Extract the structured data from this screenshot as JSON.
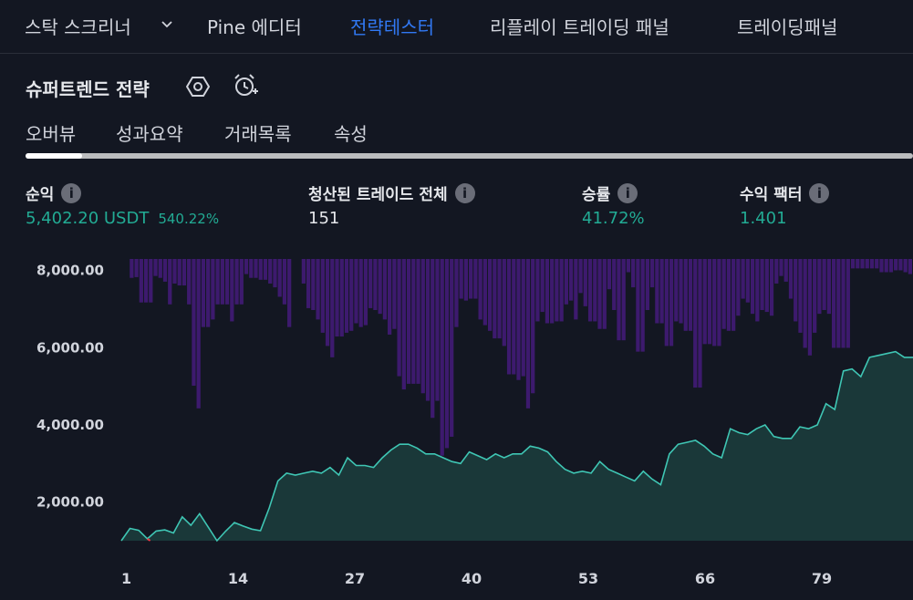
{
  "topbar": {
    "tabs": [
      {
        "label": "스탁 스크리너"
      },
      {
        "label": "Pine 에디터"
      },
      {
        "label": "전략테스터"
      },
      {
        "label": "리플레이 트레이딩 패널"
      },
      {
        "label": "트레이딩패널"
      }
    ],
    "active_color": "#3179f5"
  },
  "strategy": {
    "title": "슈퍼트렌드 전략",
    "icons": [
      "settings-hexagon-icon",
      "alarm-add-icon"
    ]
  },
  "subtabs": [
    "오버뷰",
    "성과요약",
    "거래목록",
    "속성"
  ],
  "stats": {
    "net_profit": {
      "label": "순익",
      "value": "5,402.20 USDT",
      "percent": "540.22%"
    },
    "total_closed": {
      "label": "청산된 트레이드 전체",
      "value": "151"
    },
    "win_rate": {
      "label": "승률",
      "value": "41.72%"
    },
    "profit_factor": {
      "label": "수익 팩터",
      "value": "1.401"
    }
  },
  "info_icon_glyph": "i",
  "chart_data": {
    "type": "area",
    "y_ticks": [
      "8,000.00",
      "6,000.00",
      "4,000.00",
      "2,000.00"
    ],
    "y_tick_values": [
      8000,
      6000,
      4000,
      2000
    ],
    "x_ticks": [
      "1",
      "14",
      "27",
      "40",
      "53",
      "66",
      "79"
    ],
    "x_tick_values": [
      1,
      14,
      27,
      40,
      53,
      66,
      79
    ],
    "xlim": [
      1,
      88
    ],
    "ylim": [
      1000,
      8300
    ],
    "equity_baseline": 1000,
    "colors": {
      "equity_line": "#3fc6b4",
      "equity_fill": "#1a3a3b",
      "drawdown": "#3d1a6e",
      "negative": "#f23645"
    },
    "equity": [
      1000,
      1320,
      1270,
      1050,
      1250,
      1280,
      1200,
      1620,
      1400,
      1700,
      1350,
      1000,
      1250,
      1470,
      1380,
      1300,
      1260,
      1850,
      2550,
      2750,
      2700,
      2750,
      2800,
      2750,
      2900,
      2700,
      3150,
      2950,
      2950,
      2900,
      3150,
      3350,
      3500,
      3500,
      3400,
      3250,
      3250,
      3150,
      3050,
      3000,
      3300,
      3200,
      3100,
      3250,
      3150,
      3250,
      3250,
      3450,
      3400,
      3300,
      3050,
      2850,
      2750,
      2800,
      2750,
      3050,
      2850,
      2750,
      2650,
      2550,
      2800,
      2600,
      2450,
      3250,
      3500,
      3550,
      3600,
      3450,
      3250,
      3150,
      3900,
      3800,
      3750,
      3900,
      4000,
      3700,
      3650,
      3650,
      3950,
      3900,
      4000,
      4550,
      4400,
      5400,
      5450,
      5250,
      5750,
      5800,
      5850,
      5900,
      5750,
      5750
    ],
    "drawdown": [
      0,
      500,
      480,
      1150,
      1150,
      1150,
      450,
      500,
      600,
      1200,
      650,
      700,
      700,
      1200,
      3350,
      3950,
      1800,
      1800,
      1600,
      1200,
      1200,
      1200,
      1650,
      1200,
      1200,
      400,
      500,
      500,
      550,
      550,
      650,
      750,
      1000,
      1200,
      1800,
      0,
      0,
      650,
      1300,
      1350,
      1600,
      1950,
      2300,
      2600,
      2050,
      2050,
      1950,
      1900,
      1700,
      1800,
      1750,
      1300,
      1350,
      1450,
      1600,
      2000,
      1850,
      3100,
      3450,
      3300,
      3300,
      3300,
      3550,
      3750,
      4200,
      3750,
      5200,
      5000,
      4700,
      1800,
      1050,
      1100,
      1050,
      1050,
      1600,
      1750,
      1900,
      2100,
      2100,
      2300,
      3050,
      3050,
      3200,
      3100,
      3950,
      3550,
      1650,
      1400,
      1700,
      1700,
      1650,
      1650,
      1200,
      1100,
      1600,
      900,
      1250,
      1650,
      1650,
      1850,
      1850,
      800,
      1350,
      2150,
      2150,
      350,
      750,
      2450,
      2450,
      1350,
      750,
      1700,
      1700,
      2300,
      2300,
      1650,
      1700,
      1900,
      1900,
      3400,
      3400,
      2250,
      2250,
      2300,
      2300,
      1850,
      1900,
      1900,
      1500,
      1050,
      1150,
      1450,
      1650,
      1350,
      1400,
      1500,
      650,
      450,
      600,
      1050,
      1650,
      1950,
      2350,
      2550,
      1950,
      1450,
      1350,
      1450,
      2350,
      2350,
      2350,
      2350,
      250,
      250,
      250,
      250,
      250,
      250,
      350,
      350,
      350,
      300,
      300,
      350,
      400
    ]
  }
}
